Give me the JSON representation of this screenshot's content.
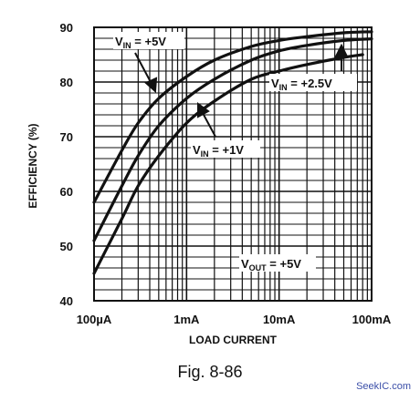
{
  "chart_data": {
    "type": "line",
    "xlabel": "LOAD CURRENT",
    "ylabel": "EFFICIENCY (%)",
    "x_scale": "log",
    "x_unit": "A",
    "xlim": [
      0.0001,
      0.1
    ],
    "ylim": [
      40,
      90
    ],
    "x_ticks": [
      {
        "value": 0.0001,
        "label": "100µA"
      },
      {
        "value": 0.001,
        "label": "1mA"
      },
      {
        "value": 0.01,
        "label": "10mA"
      },
      {
        "value": 0.1,
        "label": "100mA"
      }
    ],
    "y_ticks": [
      {
        "value": 40,
        "label": "40"
      },
      {
        "value": 50,
        "label": "50"
      },
      {
        "value": 60,
        "label": "60"
      },
      {
        "value": 70,
        "label": "70"
      },
      {
        "value": 80,
        "label": "80"
      },
      {
        "value": 90,
        "label": "90"
      }
    ],
    "grid": true,
    "series": [
      {
        "label": {
          "main": "V",
          "sub": "IN",
          "rest": " = +5V"
        },
        "x": [
          0.0001,
          0.0002,
          0.0003,
          0.0005,
          0.001,
          0.002,
          0.005,
          0.01,
          0.02,
          0.05,
          0.1
        ],
        "y": [
          58,
          67.5,
          72.5,
          77,
          81,
          84,
          86.5,
          87.6,
          88.3,
          89,
          89.2
        ]
      },
      {
        "label": {
          "main": "V",
          "sub": "IN",
          "rest": " = +2.5V"
        },
        "x": [
          0.0001,
          0.0002,
          0.0003,
          0.0005,
          0.001,
          0.002,
          0.005,
          0.01,
          0.02,
          0.05,
          0.1
        ],
        "y": [
          51,
          61,
          66.5,
          72,
          77,
          80.5,
          84,
          85.7,
          86.7,
          87.6,
          87.9
        ]
      },
      {
        "label": {
          "main": "V",
          "sub": "IN",
          "rest": " = +1V"
        },
        "x": [
          0.0001,
          0.0002,
          0.0003,
          0.0005,
          0.001,
          0.002,
          0.005,
          0.01,
          0.02,
          0.05,
          0.08
        ],
        "y": [
          45,
          55,
          61,
          66.5,
          72.5,
          76.5,
          80.5,
          82,
          83.2,
          84.5,
          85
        ]
      }
    ],
    "annotations": [
      {
        "main": "V",
        "sub": "OUT",
        "rest": " = +5V"
      }
    ]
  },
  "figure": {
    "caption": "Fig. 8-86",
    "watermark": "SeekIC.com"
  }
}
